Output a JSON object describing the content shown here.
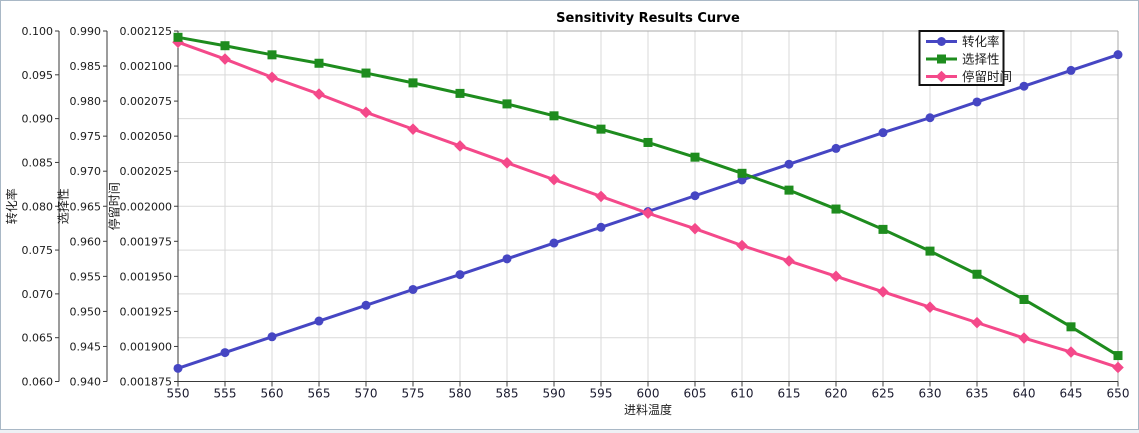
{
  "frame": {
    "background": "#ffffff",
    "border_color": "#a9b8c6"
  },
  "chart_data": {
    "type": "line",
    "title": "Sensitivity Results Curve",
    "grid": {
      "show": true,
      "color": "#d9d9d9"
    },
    "plot_border_color": "#a8a8a8",
    "axis_line_color": "#3a3a3a",
    "x_axis": {
      "label": "进料温度",
      "min": 550,
      "max": 650,
      "tick_step": 5,
      "ticks": [
        "550",
        "555",
        "560",
        "565",
        "570",
        "575",
        "580",
        "585",
        "590",
        "595",
        "600",
        "605",
        "610",
        "615",
        "620",
        "625",
        "630",
        "635",
        "640",
        "645",
        "650"
      ]
    },
    "y_axes": [
      {
        "id": "conversion",
        "label": "转化率",
        "min": 0.06,
        "max": 0.1,
        "tick_step": 0.005,
        "tick_labels": [
          "0.100",
          "0.095",
          "0.090",
          "0.085",
          "0.080",
          "0.075",
          "0.070",
          "0.065",
          "0.060"
        ]
      },
      {
        "id": "selectivity",
        "label": "选择性",
        "min": 0.94,
        "max": 0.99,
        "tick_step": 0.005,
        "tick_labels": [
          "0.990",
          "0.985",
          "0.980",
          "0.975",
          "0.970",
          "0.965",
          "0.960",
          "0.955",
          "0.950",
          "0.945",
          "0.940"
        ]
      },
      {
        "id": "residence-time",
        "label": "停留时间",
        "min": 0.001875,
        "max": 0.002125,
        "tick_step": 2.5e-05,
        "tick_labels": [
          "0.002125",
          "0.002100",
          "0.002075",
          "0.002050",
          "0.002025",
          "0.002000",
          "0.001975",
          "0.001950",
          "0.001925",
          "0.001900",
          "0.001875"
        ]
      }
    ],
    "series": [
      {
        "id": "conversion",
        "name": "转化率",
        "axis": "conversion",
        "color": "#4646c3",
        "marker": "circle",
        "x": [
          550,
          555,
          560,
          565,
          570,
          575,
          580,
          585,
          590,
          595,
          600,
          605,
          610,
          615,
          620,
          625,
          630,
          635,
          640,
          645,
          650
        ],
        "values": [
          0.0615,
          0.0633,
          0.0651,
          0.0669,
          0.0687,
          0.0705,
          0.0722,
          0.074,
          0.0758,
          0.0776,
          0.0794,
          0.0812,
          0.083,
          0.0848,
          0.0866,
          0.0884,
          0.0901,
          0.0919,
          0.0937,
          0.0955,
          0.0973
        ]
      },
      {
        "id": "selectivity",
        "name": "选择性",
        "axis": "selectivity",
        "color": "#1e8c1e",
        "marker": "square",
        "x": [
          550,
          555,
          560,
          565,
          570,
          575,
          580,
          585,
          590,
          595,
          600,
          605,
          610,
          615,
          620,
          625,
          630,
          635,
          640,
          645,
          650
        ],
        "values": [
          0.9891,
          0.9879,
          0.9866,
          0.9854,
          0.984,
          0.9826,
          0.9811,
          0.9796,
          0.9779,
          0.976,
          0.9741,
          0.972,
          0.9697,
          0.9673,
          0.9646,
          0.9617,
          0.9586,
          0.9553,
          0.9517,
          0.9478,
          0.9437
        ]
      },
      {
        "id": "residence-time",
        "name": "停留时间",
        "axis": "residence-time",
        "color": "#f4498a",
        "marker": "diamond",
        "x": [
          550,
          555,
          560,
          565,
          570,
          575,
          580,
          585,
          590,
          595,
          600,
          605,
          610,
          615,
          620,
          625,
          630,
          635,
          640,
          645,
          650
        ],
        "values": [
          0.002117,
          0.002105,
          0.002092,
          0.00208,
          0.002067,
          0.002055,
          0.002043,
          0.002031,
          0.002019,
          0.002007,
          0.001995,
          0.001984,
          0.001972,
          0.001961,
          0.00195,
          0.001939,
          0.001928,
          0.001917,
          0.001906,
          0.001896,
          0.001885
        ]
      }
    ],
    "legend": {
      "position": "top-right",
      "background": "#ffffff",
      "border_color": "#111111",
      "entries": [
        "转化率",
        "选择性",
        "停留时间"
      ]
    }
  }
}
